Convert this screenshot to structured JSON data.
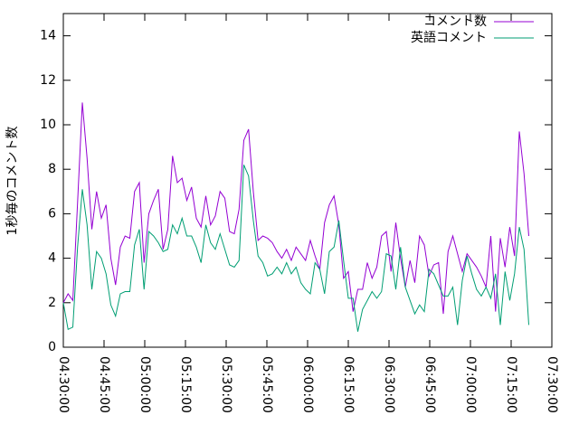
{
  "chart_data": {
    "type": "line",
    "y_label": "1秒毎のコメント数",
    "legend": "top-right",
    "x": [
      16200,
      16305,
      16410,
      16515,
      16620,
      16725,
      16830,
      16935,
      17040,
      17145,
      17250,
      17355,
      17460,
      17565,
      17670,
      17775,
      17880,
      17985,
      18090,
      18195,
      18300,
      18405,
      18510,
      18615,
      18720,
      18825,
      18930,
      19035,
      19140,
      19245,
      19350,
      19455,
      19560,
      19665,
      19770,
      19875,
      19980,
      20085,
      20190,
      20295,
      20400,
      20505,
      20610,
      20715,
      20820,
      20925,
      21030,
      21135,
      21240,
      21345,
      21450,
      21555,
      21660,
      21765,
      21870,
      21975,
      22080,
      22185,
      22290,
      22395,
      22500,
      22605,
      22710,
      22815,
      22920,
      23025,
      23130,
      23235,
      23340,
      23445,
      23550,
      23655,
      23760,
      23865,
      23970,
      24075,
      24180,
      24285,
      24390,
      24495,
      24600,
      24705,
      24810,
      24915,
      25020,
      25125,
      25230,
      25335,
      25440,
      25545,
      25650,
      25755,
      25860,
      25965,
      26070,
      26175,
      26280,
      26385,
      26490
    ],
    "series": [
      {
        "name": "コメント数",
        "color": "#9400d3",
        "values": [
          2.0,
          2.4,
          2.1,
          6.5,
          11.0,
          8.5,
          5.3,
          7.0,
          5.8,
          6.4,
          4.0,
          2.8,
          4.5,
          5.0,
          4.9,
          7.0,
          7.4,
          3.8,
          6.0,
          6.6,
          7.1,
          4.4,
          5.3,
          8.6,
          7.4,
          7.6,
          6.6,
          7.2,
          5.8,
          5.4,
          6.8,
          5.5,
          5.9,
          7.0,
          6.7,
          5.2,
          5.1,
          6.2,
          9.3,
          9.8,
          7.0,
          4.8,
          5.0,
          4.9,
          4.7,
          4.3,
          4.0,
          4.4,
          3.9,
          4.5,
          4.2,
          3.9,
          4.8,
          4.1,
          3.5,
          5.6,
          6.4,
          6.8,
          5.5,
          3.1,
          3.4,
          1.6,
          2.6,
          2.6,
          3.8,
          3.1,
          3.6,
          5.0,
          5.2,
          3.4,
          5.6,
          4.0,
          2.7,
          3.9,
          2.9,
          5.0,
          4.6,
          3.2,
          3.7,
          3.8,
          1.5,
          4.3,
          5.0,
          4.2,
          3.4,
          4.2,
          3.9,
          3.6,
          3.2,
          2.7,
          5.0,
          1.6,
          4.9,
          3.6,
          5.4,
          4.1,
          9.7,
          7.8,
          5.0
        ]
      },
      {
        "name": "英語コメント",
        "color": "#009e73",
        "values": [
          2.0,
          0.8,
          0.9,
          4.5,
          7.1,
          5.5,
          2.6,
          4.3,
          4.0,
          3.3,
          1.9,
          1.4,
          2.4,
          2.5,
          2.5,
          4.6,
          5.3,
          2.6,
          5.2,
          5.0,
          4.7,
          4.3,
          4.4,
          5.5,
          5.1,
          5.8,
          5.0,
          5.0,
          4.5,
          3.8,
          5.5,
          4.7,
          4.4,
          5.1,
          4.4,
          3.7,
          3.6,
          3.9,
          8.2,
          7.7,
          5.7,
          4.1,
          3.8,
          3.2,
          3.3,
          3.6,
          3.3,
          3.8,
          3.3,
          3.6,
          2.9,
          2.6,
          2.4,
          3.8,
          3.5,
          2.4,
          4.3,
          4.5,
          5.7,
          3.9,
          2.2,
          2.2,
          0.7,
          1.7,
          2.1,
          2.5,
          2.2,
          2.5,
          4.2,
          4.1,
          2.6,
          4.5,
          2.7,
          2.1,
          1.5,
          1.9,
          1.6,
          3.5,
          3.3,
          2.8,
          2.3,
          2.3,
          2.7,
          1.0,
          3.0,
          4.1,
          3.3,
          2.6,
          2.3,
          2.7,
          2.2,
          3.3,
          1.0,
          3.4,
          2.1,
          3.3,
          5.4,
          4.4,
          1.0
        ]
      }
    ],
    "xlim": [
      16200,
      27000
    ],
    "xticks": [
      {
        "value": 16200,
        "label": "04:30:00"
      },
      {
        "value": 17100,
        "label": "04:45:00"
      },
      {
        "value": 18000,
        "label": "05:00:00"
      },
      {
        "value": 18900,
        "label": "05:15:00"
      },
      {
        "value": 19800,
        "label": "05:30:00"
      },
      {
        "value": 20700,
        "label": "05:45:00"
      },
      {
        "value": 21600,
        "label": "06:00:00"
      },
      {
        "value": 22500,
        "label": "06:15:00"
      },
      {
        "value": 23400,
        "label": "06:30:00"
      },
      {
        "value": 24300,
        "label": "06:45:00"
      },
      {
        "value": 25200,
        "label": "07:00:00"
      },
      {
        "value": 26100,
        "label": "07:15:00"
      },
      {
        "value": 27000,
        "label": "07:30:00"
      }
    ],
    "ylim": [
      0,
      15
    ],
    "yticks": [
      0,
      2,
      4,
      6,
      8,
      10,
      12,
      14
    ]
  }
}
